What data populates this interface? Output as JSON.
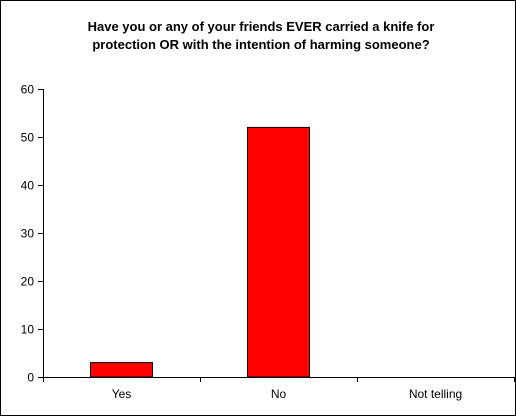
{
  "chart_data": {
    "type": "bar",
    "title_lines": [
      "Have you or any of your friends EVER carried a knife for",
      "protection OR with the intention of harming someone?"
    ],
    "categories": [
      "Yes",
      "No",
      "Not telling"
    ],
    "values": [
      3,
      52,
      0
    ],
    "ylim": [
      0,
      60
    ],
    "yticks": [
      0,
      10,
      20,
      30,
      40,
      50,
      60
    ],
    "xlabel": "",
    "ylabel": "",
    "grid": false,
    "legend": "none",
    "bar_color": "#ff0000",
    "bar_edge_color": "#000000"
  }
}
